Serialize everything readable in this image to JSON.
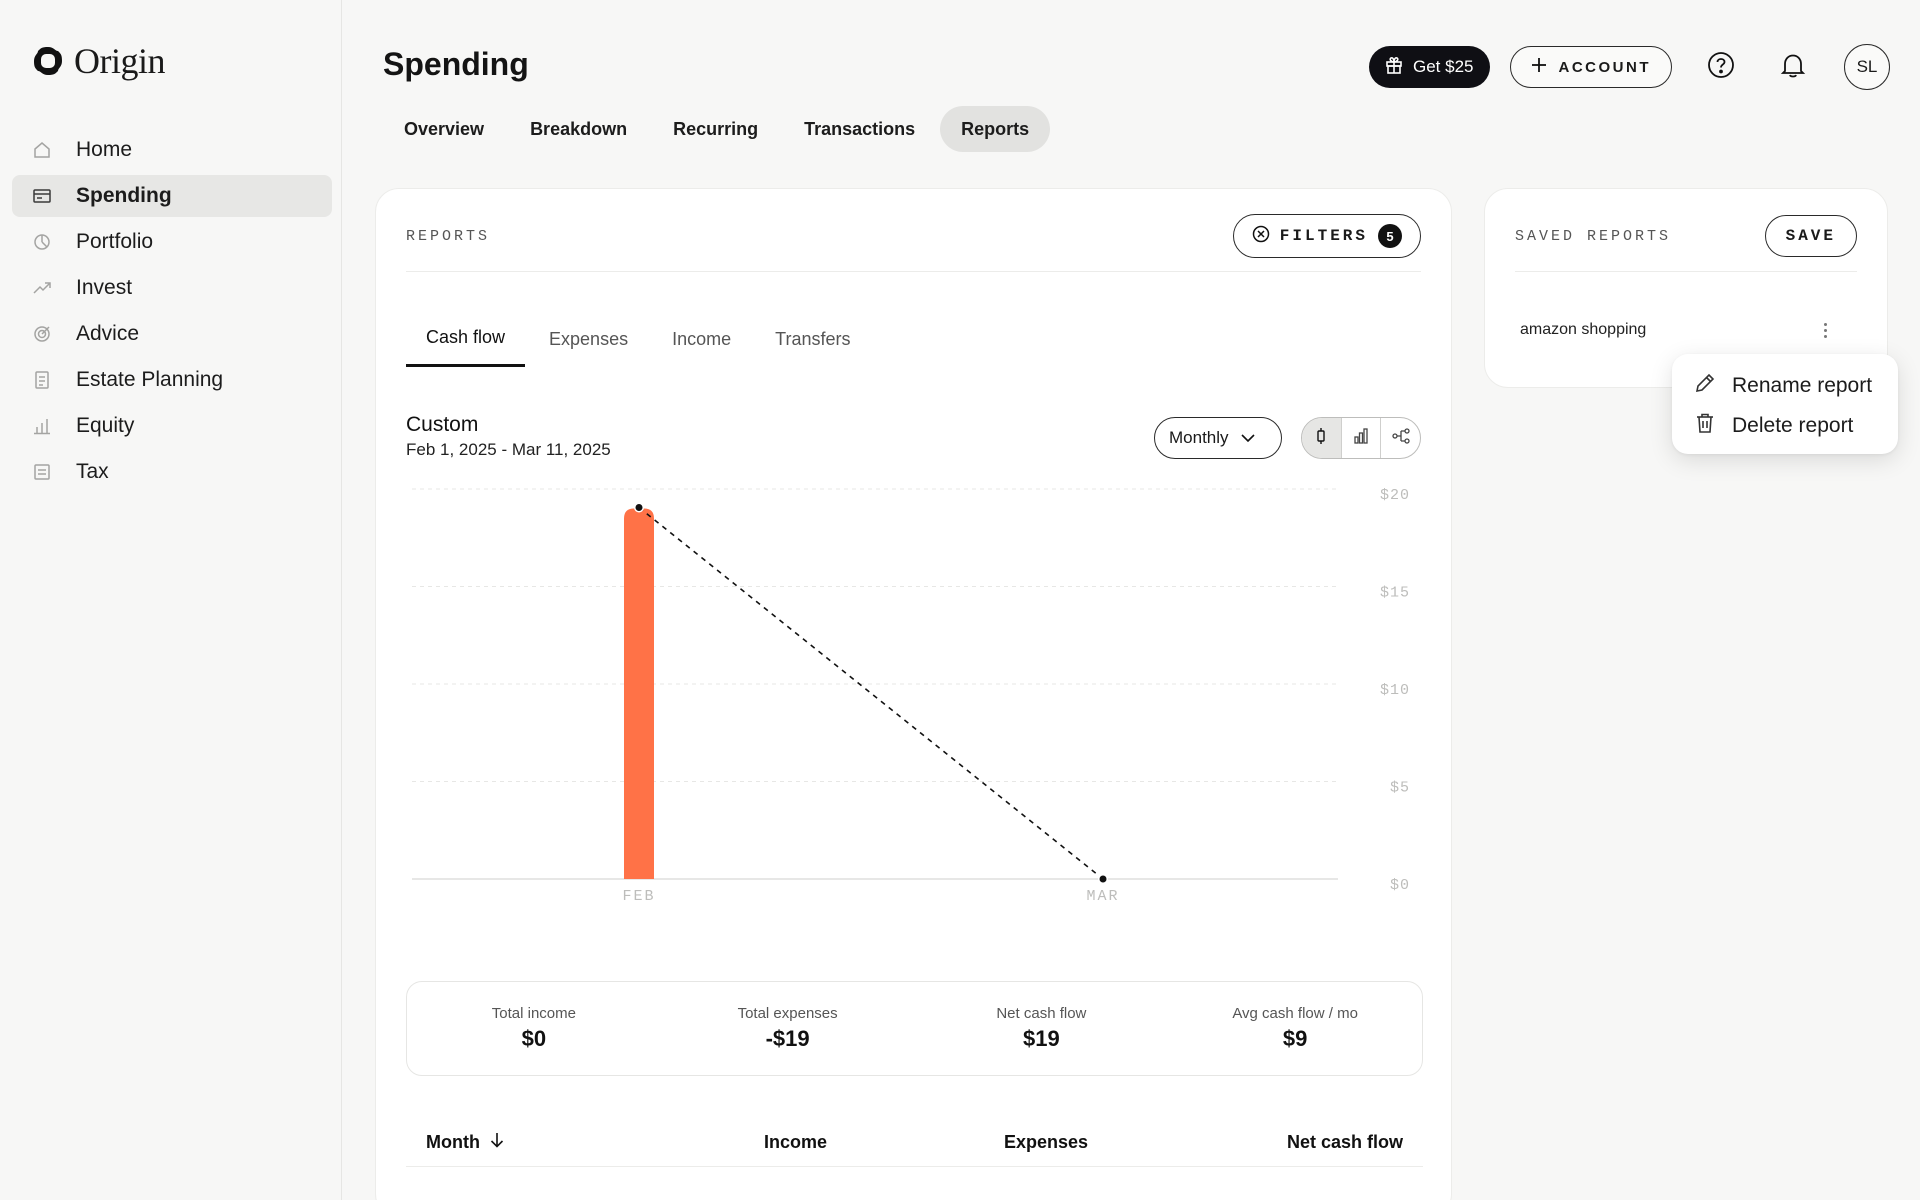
{
  "app": {
    "logo_text": "Origin"
  },
  "sidebar": {
    "items": [
      {
        "label": "Home",
        "icon": "home-icon"
      },
      {
        "label": "Spending",
        "icon": "card-icon",
        "active": true
      },
      {
        "label": "Portfolio",
        "icon": "pie-icon"
      },
      {
        "label": "Invest",
        "icon": "trend-icon"
      },
      {
        "label": "Advice",
        "icon": "target-icon"
      },
      {
        "label": "Estate Planning",
        "icon": "document-icon"
      },
      {
        "label": "Equity",
        "icon": "bars-icon"
      },
      {
        "label": "Tax",
        "icon": "receipt-icon"
      }
    ]
  },
  "header": {
    "title": "Spending",
    "gift_label": "Get $25",
    "account_label": "ACCOUNT",
    "avatar_initials": "SL"
  },
  "tabs": [
    {
      "label": "Overview"
    },
    {
      "label": "Breakdown"
    },
    {
      "label": "Recurring"
    },
    {
      "label": "Transactions"
    },
    {
      "label": "Reports",
      "active": true
    }
  ],
  "reports": {
    "section_label": "REPORTS",
    "filters_label": "FILTERS",
    "filters_count": "5",
    "subtabs": [
      {
        "label": "Cash flow",
        "active": true
      },
      {
        "label": "Expenses"
      },
      {
        "label": "Income"
      },
      {
        "label": "Transfers"
      }
    ],
    "range_title": "Custom",
    "range_dates": "Feb 1, 2025 - Mar 11, 2025",
    "period_select": "Monthly"
  },
  "chart_data": {
    "type": "bar",
    "categories": [
      "FEB",
      "MAR"
    ],
    "series": [
      {
        "values": [
          19,
          0
        ],
        "kind": "bar",
        "color": "#ff7247"
      },
      {
        "values": [
          19,
          0
        ],
        "kind": "line",
        "color": "#111111"
      }
    ],
    "y_ticks": [
      "$20",
      "$15",
      "$10",
      "$5",
      "$0"
    ],
    "ylim": [
      0,
      20
    ],
    "grid": true
  },
  "summary": [
    {
      "label": "Total income",
      "value": "$0"
    },
    {
      "label": "Total expenses",
      "value": "-$19"
    },
    {
      "label": "Net cash flow",
      "value": "$19"
    },
    {
      "label": "Avg cash flow / mo",
      "value": "$9"
    }
  ],
  "table": {
    "col_month": "Month",
    "col_income": "Income",
    "col_expenses": "Expenses",
    "col_net": "Net cash flow"
  },
  "saved_reports": {
    "section_label": "SAVED REPORTS",
    "save_label": "SAVE",
    "items": [
      {
        "label": "amazon shopping"
      }
    ]
  },
  "context_menu": {
    "rename_label": "Rename report",
    "delete_label": "Delete report"
  },
  "colors": {
    "accent": "#ff7247",
    "dark": "#0f0f14"
  }
}
